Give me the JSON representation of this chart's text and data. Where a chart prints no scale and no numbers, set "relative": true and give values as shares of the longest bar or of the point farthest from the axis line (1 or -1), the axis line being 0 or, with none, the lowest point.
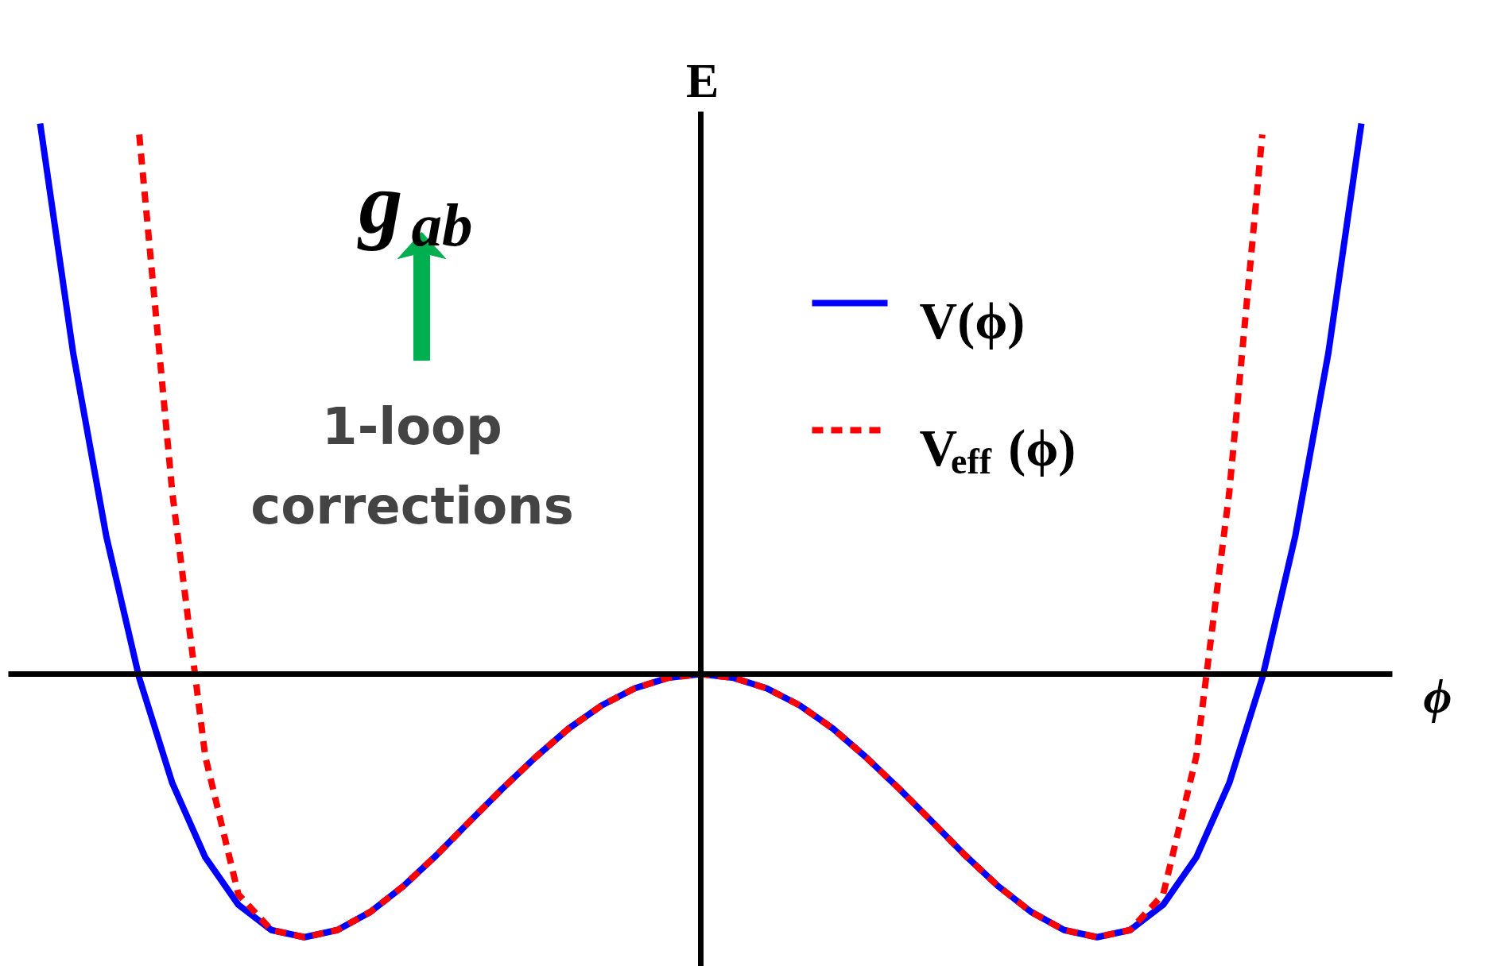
{
  "chart_data": {
    "type": "line",
    "relative": true,
    "xlabel": "ϕ",
    "ylabel": "E",
    "categories": [
      null,
      null,
      null,
      null,
      null,
      null,
      null,
      null,
      null,
      null,
      null,
      null,
      null,
      null,
      null,
      null,
      null,
      null,
      null,
      null,
      null,
      null,
      null,
      null,
      null,
      null,
      null,
      null,
      null,
      null,
      null,
      null,
      null,
      null,
      null,
      null,
      null,
      null,
      null,
      null,
      null
    ],
    "series": [
      {
        "name": "V(ϕ)",
        "color": "#0000ff",
        "line_style": "solid",
        "values": [
          1.0,
          0.583,
          0.251,
          -0.007,
          -0.198,
          -0.333,
          -0.419,
          -0.465,
          -0.478,
          -0.465,
          -0.432,
          -0.385,
          -0.329,
          -0.268,
          -0.208,
          -0.151,
          -0.099,
          -0.057,
          -0.026,
          -0.007,
          0,
          -0.007,
          -0.026,
          -0.057,
          -0.099,
          -0.151,
          -0.208,
          -0.268,
          -0.329,
          -0.385,
          -0.432,
          -0.465,
          -0.478,
          -0.465,
          -0.419,
          -0.333,
          -0.198,
          -0.007,
          0.251,
          0.583,
          1.0
        ]
      },
      {
        "name": "V$_{eff}$(ϕ)",
        "color": "#ff0000",
        "line_style": "dashed",
        "values": [
          null,
          null,
          null,
          0.98,
          0.33,
          -0.15,
          -0.4,
          -0.465,
          -0.478,
          -0.465,
          -0.432,
          -0.385,
          -0.329,
          -0.268,
          -0.208,
          -0.151,
          -0.099,
          -0.057,
          -0.026,
          -0.007,
          0,
          -0.007,
          -0.026,
          -0.057,
          -0.099,
          -0.151,
          -0.208,
          -0.268,
          -0.329,
          -0.385,
          -0.432,
          -0.465,
          -0.478,
          -0.465,
          -0.4,
          -0.15,
          0.33,
          0.98,
          null,
          null,
          null
        ]
      }
    ],
    "legend": "right",
    "grid": false,
    "annotations": [
      "g$_{ab}$",
      "1-loop corrections"
    ]
  }
}
